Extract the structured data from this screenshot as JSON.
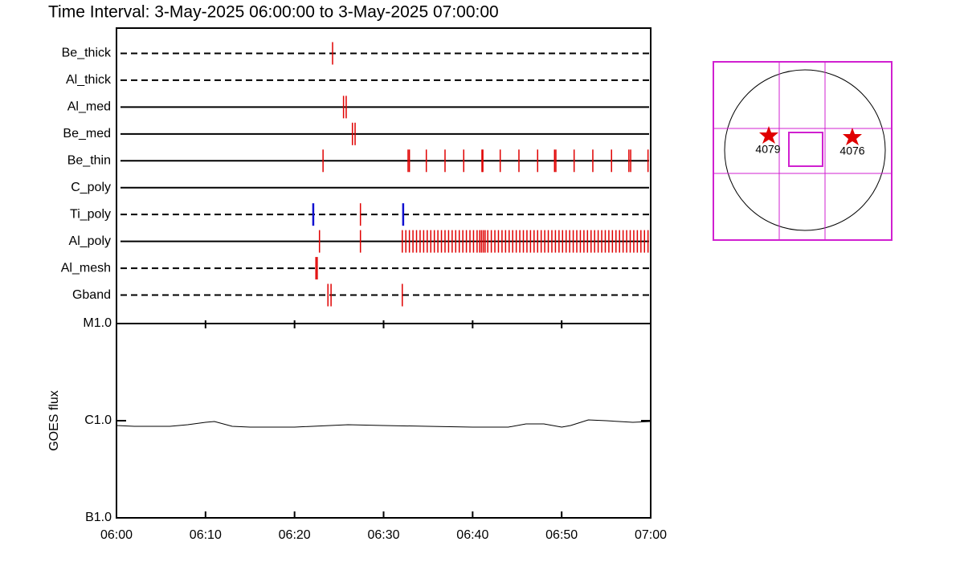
{
  "chart_data": [
    {
      "type": "timeline",
      "title": "Time Interval:  3-May-2025 06:00:00 to  3-May-2025 07:00:00",
      "xlim": [
        0,
        60
      ],
      "color": "#e00000",
      "rows": [
        {
          "name": "Be_thick",
          "line": "dashed",
          "events": [
            24.27
          ]
        },
        {
          "name": "Al_thick",
          "line": "dashed",
          "events": []
        },
        {
          "name": "Al_med",
          "line": "solid",
          "events": [
            25.5,
            25.8
          ]
        },
        {
          "name": "Be_med",
          "line": "solid",
          "events": [
            26.5,
            26.8
          ]
        },
        {
          "name": "Be_thin",
          "line": "solid",
          "events": [
            23.2,
            32.75,
            32.9,
            34.8,
            36.9,
            39.0,
            41.05,
            41.15,
            43.1,
            45.2,
            47.3,
            49.2,
            49.35,
            51.4,
            53.5,
            55.6,
            57.55,
            57.75,
            59.7
          ]
        },
        {
          "name": "C_poly",
          "line": "solid",
          "events": []
        },
        {
          "name": "Ti_poly",
          "line": "dashed",
          "events": [
            22.1,
            27.4,
            32.2
          ],
          "event_colors": [
            "#1010d0",
            "#e00000",
            "#1010d0"
          ]
        },
        {
          "name": "Al_poly",
          "line": "solid",
          "events": [
            22.8,
            27.4,
            32.1,
            32.5,
            32.9,
            33.3,
            33.7,
            34.1,
            34.5,
            34.9,
            35.3,
            35.7,
            36.1,
            36.5,
            36.9,
            37.3,
            37.7,
            38.1,
            38.5,
            38.9,
            39.3,
            39.7,
            40.1,
            40.5,
            40.8,
            41.0,
            41.2,
            41.4,
            41.7,
            42.1,
            42.5,
            42.9,
            43.3,
            43.7,
            44.1,
            44.5,
            44.9,
            45.3,
            45.7,
            46.1,
            46.5,
            46.9,
            47.3,
            47.7,
            48.1,
            48.5,
            48.9,
            49.3,
            49.7,
            50.1,
            50.5,
            50.9,
            51.3,
            51.7,
            52.1,
            52.5,
            52.9,
            53.3,
            53.7,
            54.1,
            54.5,
            54.9,
            55.3,
            55.7,
            56.1,
            56.5,
            56.9,
            57.3,
            57.7,
            58.1,
            58.5,
            58.9,
            59.3,
            59.7
          ]
        },
        {
          "name": "Al_mesh",
          "line": "dashed",
          "events": [
            22.4,
            22.55
          ]
        },
        {
          "name": "Gband",
          "line": "dashed",
          "events": [
            23.75,
            24.1,
            32.1
          ]
        }
      ]
    },
    {
      "type": "line",
      "ylabel": "GOES flux",
      "log_y": true,
      "xlim": [
        0,
        60
      ],
      "xticks": [
        {
          "value": 0,
          "label": "06:00"
        },
        {
          "value": 10,
          "label": "06:10"
        },
        {
          "value": 20,
          "label": "06:20"
        },
        {
          "value": 30,
          "label": "06:30"
        },
        {
          "value": 40,
          "label": "06:40"
        },
        {
          "value": 50,
          "label": "06:50"
        },
        {
          "value": 60,
          "label": "07:00"
        }
      ],
      "ylim": [
        1e-07,
        1e-05
      ],
      "yticks": [
        {
          "value": 1e-07,
          "label": "B1.0"
        },
        {
          "value": 1e-06,
          "label": "C1.0"
        },
        {
          "value": 1e-05,
          "label": "M1.0"
        }
      ],
      "x": [
        0,
        2,
        4,
        6,
        8,
        10,
        11,
        13,
        15,
        20,
        24,
        26,
        30,
        35,
        40,
        44,
        46,
        48,
        50,
        51,
        53,
        55,
        58,
        60
      ],
      "values": [
        8.92e-07,
        8.75e-07,
        8.75e-07,
        8.75e-07,
        9.09e-07,
        9.63e-07,
        9.81e-07,
        8.75e-07,
        8.59e-07,
        8.59e-07,
        8.92e-07,
        9.09e-07,
        8.92e-07,
        8.75e-07,
        8.59e-07,
        8.59e-07,
        9.27e-07,
        9.27e-07,
        8.59e-07,
        8.92e-07,
        1.019e-06,
        1e-06,
        9.63e-07,
        9.81e-07
      ],
      "color": "#000000"
    }
  ],
  "map": {
    "regions": [
      {
        "label": "4079"
      },
      {
        "label": "4076"
      }
    ]
  }
}
